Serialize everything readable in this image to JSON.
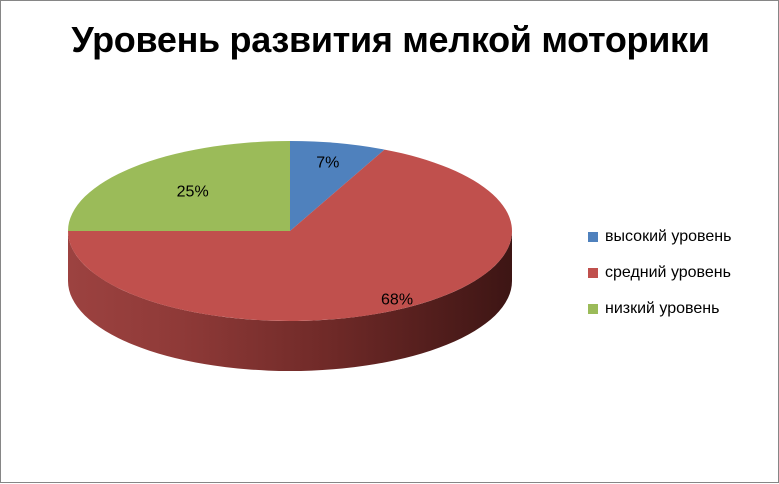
{
  "chart_data": {
    "type": "pie",
    "title": "Уровень развития мелкой моторики",
    "three_d": true,
    "legend_position": "right",
    "slices": [
      {
        "label": "высокий уровень",
        "value": 7,
        "display": "7%",
        "color": "#4F81BD"
      },
      {
        "label": "средний уровень",
        "value": 68,
        "display": "68%",
        "color": "#C0504D"
      },
      {
        "label": "низкий уровень",
        "value": 25,
        "display": "25%",
        "color": "#9BBB59"
      }
    ]
  }
}
